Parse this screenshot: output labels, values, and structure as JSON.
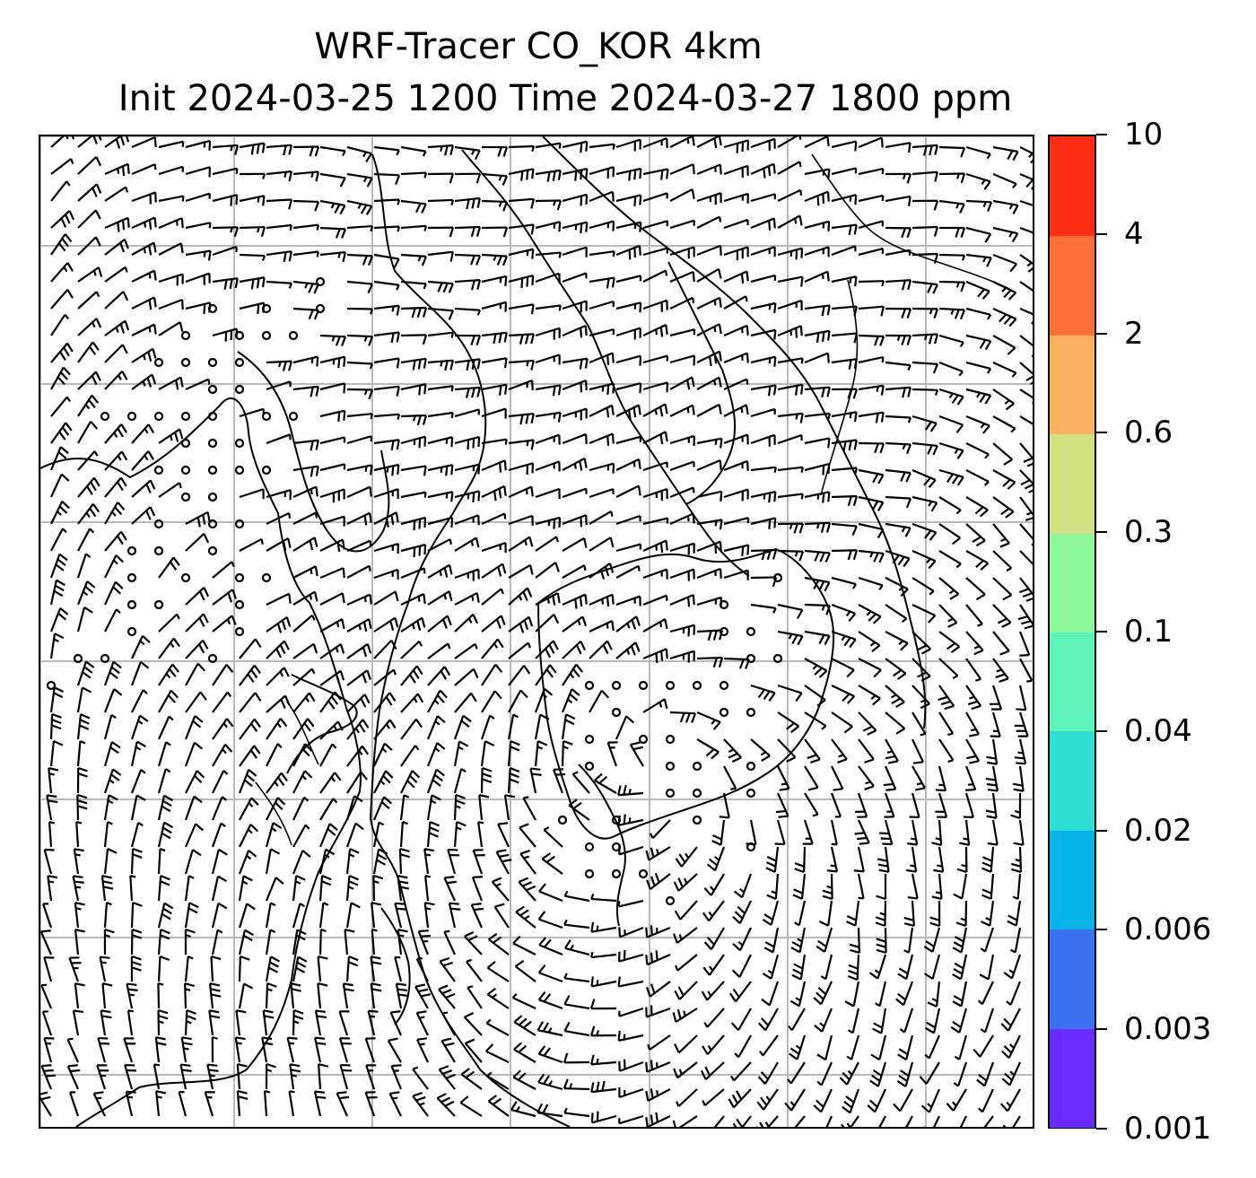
{
  "title": {
    "line1": "WRF-Tracer CO_KOR 4km",
    "line2": "Init 2024-03-25 1200 Time 2024-03-27 1800 ppm"
  },
  "map": {
    "grid_color": "#b8b8b8",
    "line_color": "#000000",
    "grid_lines": "on",
    "features": [
      "coastlines",
      "country-borders",
      "wind-barbs"
    ]
  },
  "colorbar": {
    "levels": [
      "0.001",
      "0.003",
      "0.006",
      "0.02",
      "0.04",
      "0.1",
      "0.3",
      "0.6",
      "2",
      "4",
      "10"
    ],
    "colors": [
      "#6a2bff",
      "#3b72f2",
      "#07b2e9",
      "#2ddfd1",
      "#5ef3b8",
      "#8ff79b",
      "#d2e282",
      "#fcb162",
      "#ff6f3a",
      "#ff2f15"
    ]
  }
}
